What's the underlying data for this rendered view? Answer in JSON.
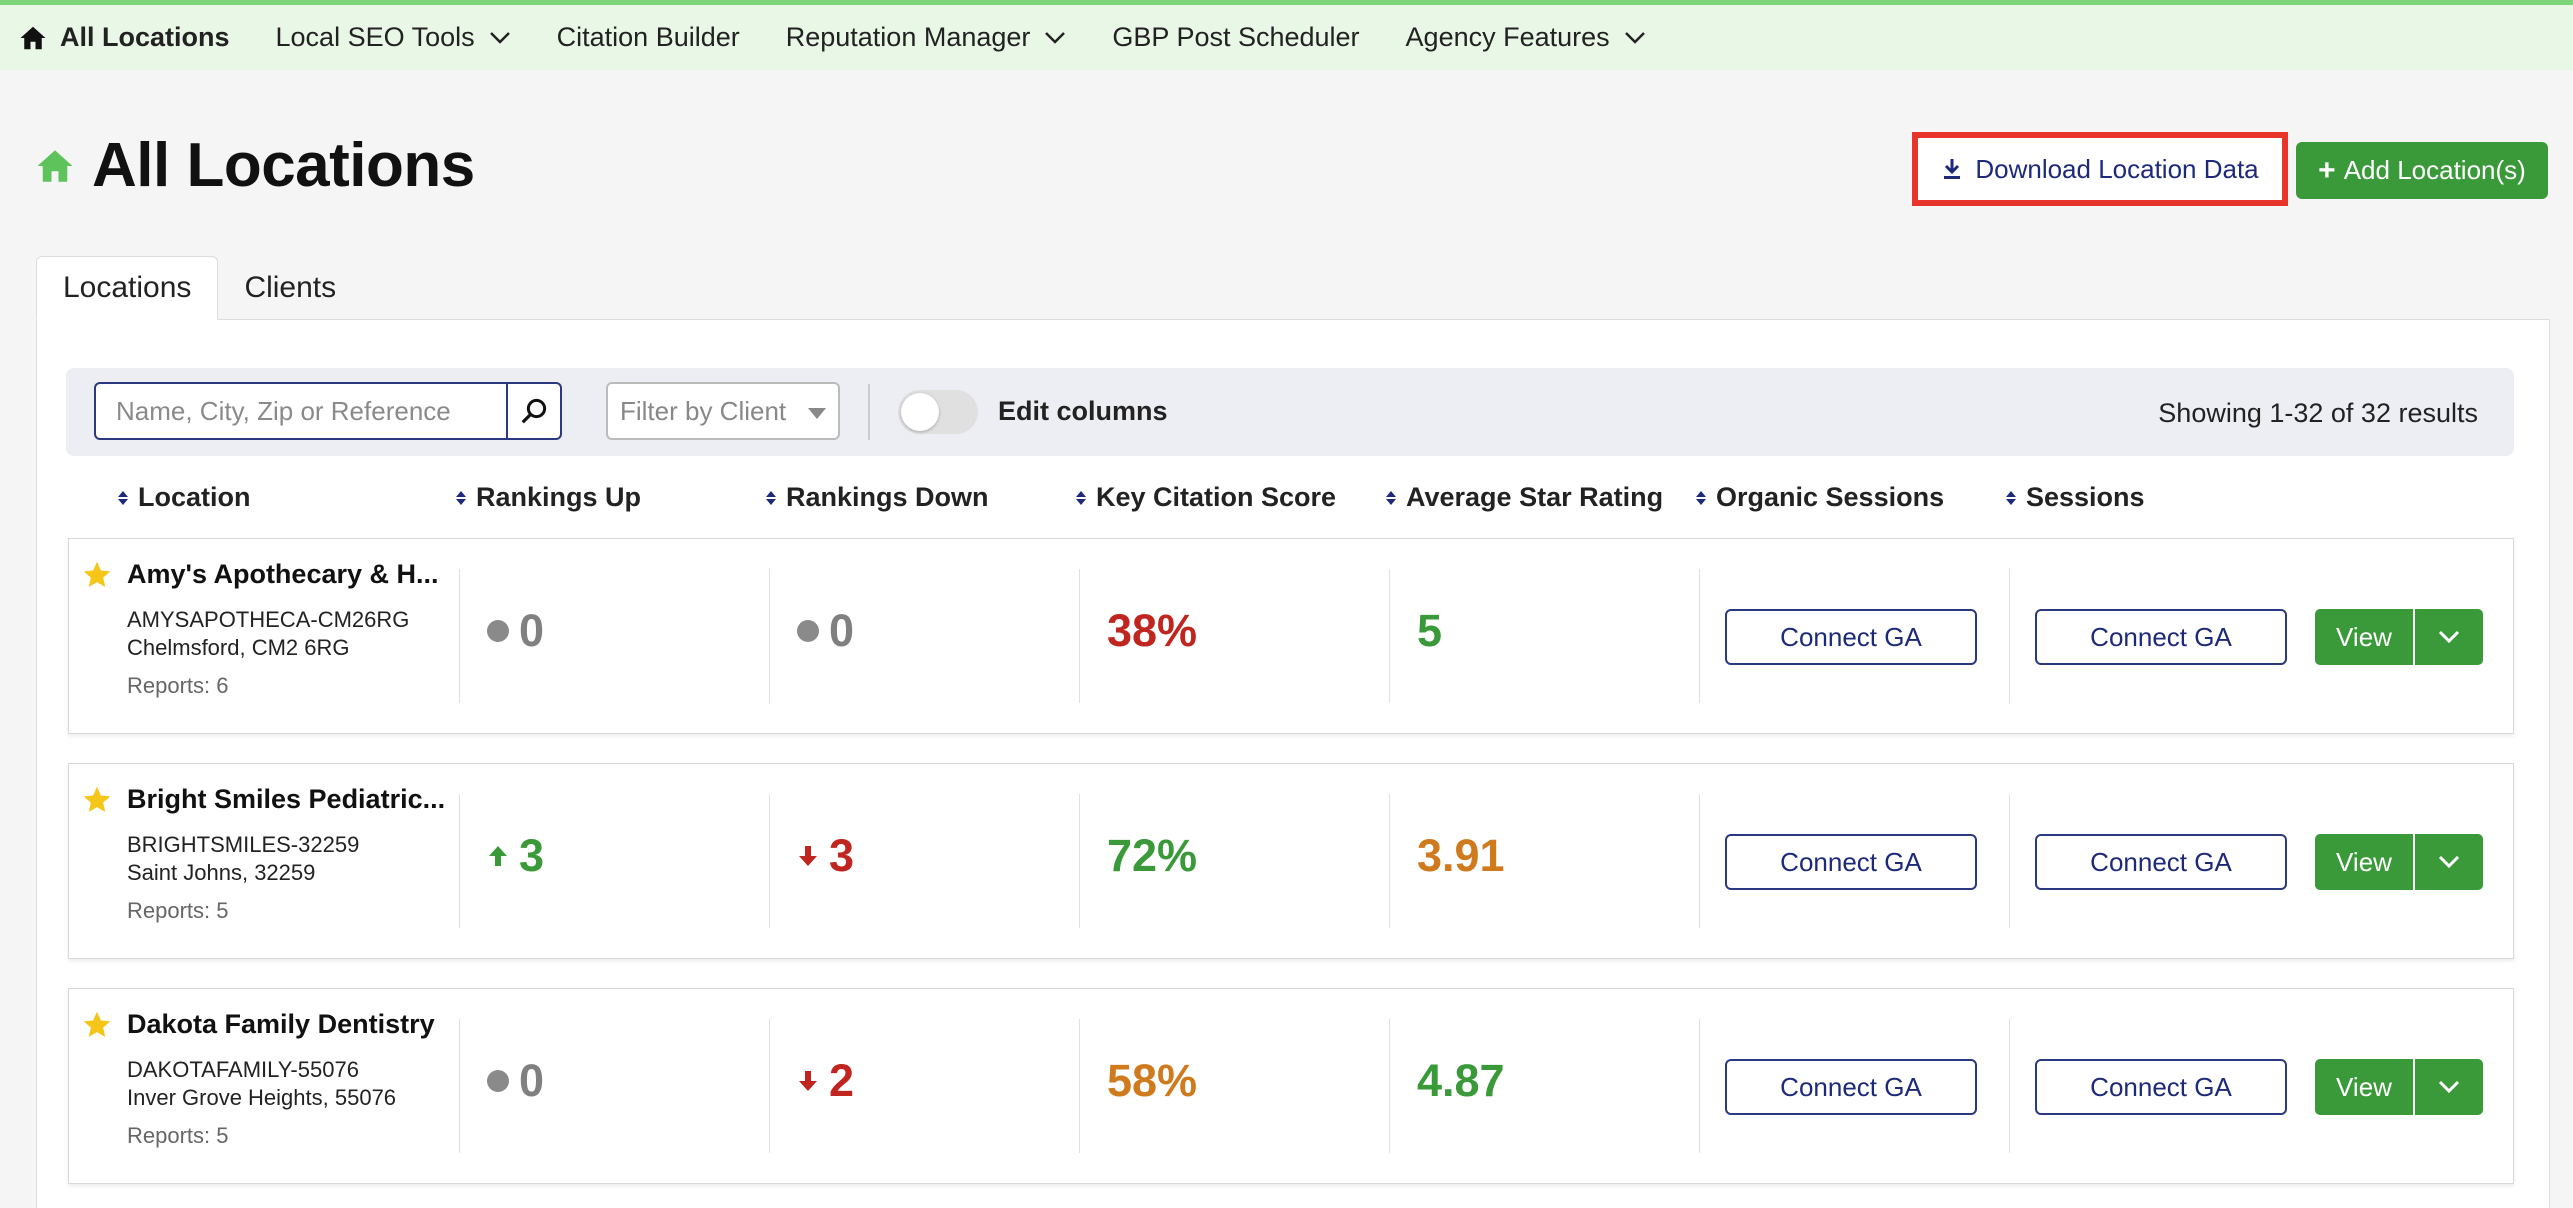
{
  "nav": {
    "home_label": "All Locations",
    "items": [
      {
        "label": "Local SEO Tools",
        "dropdown": true
      },
      {
        "label": "Citation Builder",
        "dropdown": false
      },
      {
        "label": "Reputation Manager",
        "dropdown": true
      },
      {
        "label": "GBP Post Scheduler",
        "dropdown": false
      },
      {
        "label": "Agency Features",
        "dropdown": true
      }
    ]
  },
  "header": {
    "title": "All Locations",
    "download_label": "Download Location Data",
    "add_label": "Add Location(s)"
  },
  "tabs": [
    {
      "label": "Locations",
      "active": true
    },
    {
      "label": "Clients",
      "active": false
    }
  ],
  "toolbar": {
    "search_placeholder": "Name, City, Zip or Reference",
    "filter_placeholder": "Filter by Client",
    "edit_columns_label": "Edit columns",
    "results_text": "Showing 1-32 of 32 results"
  },
  "columns": [
    "Location",
    "Rankings Up",
    "Rankings Down",
    "Key Citation Score",
    "Average Star Rating",
    "Organic Sessions",
    "Sessions"
  ],
  "rows": [
    {
      "name": "Amy's Apothecary & H...",
      "reference": "AMYSAPOTHECA-CM26RG",
      "city": "Chelmsford, CM2 6RG",
      "reports": "Reports: 6",
      "rankings_up": "0",
      "rankings_up_trend": "neutral",
      "rankings_down": "0",
      "rankings_down_trend": "neutral",
      "citation_score": "38%",
      "citation_color": "red",
      "star_rating": "5",
      "star_color": "green",
      "organic_label": "Connect GA",
      "sessions_label": "Connect GA",
      "view_label": "View"
    },
    {
      "name": "Bright Smiles Pediatric...",
      "reference": "BRIGHTSMILES-32259",
      "city": "Saint Johns, 32259",
      "reports": "Reports: 5",
      "rankings_up": "3",
      "rankings_up_trend": "up",
      "rankings_down": "3",
      "rankings_down_trend": "down",
      "citation_score": "72%",
      "citation_color": "green",
      "star_rating": "3.91",
      "star_color": "orange",
      "organic_label": "Connect GA",
      "sessions_label": "Connect GA",
      "view_label": "View"
    },
    {
      "name": "Dakota Family Dentistry",
      "reference": "DAKOTAFAMILY-55076",
      "city": "Inver Grove Heights, 55076",
      "reports": "Reports: 5",
      "rankings_up": "0",
      "rankings_up_trend": "neutral",
      "rankings_down": "2",
      "rankings_down_trend": "down",
      "citation_score": "58%",
      "citation_color": "orange",
      "star_rating": "4.87",
      "star_color": "green",
      "organic_label": "Connect GA",
      "sessions_label": "Connect GA",
      "view_label": "View"
    }
  ],
  "colors": {
    "accent_green": "#3a9a3a",
    "nav_bg": "#e9f7e6",
    "navy": "#1d2a7a",
    "highlight_red": "#e8342a"
  }
}
